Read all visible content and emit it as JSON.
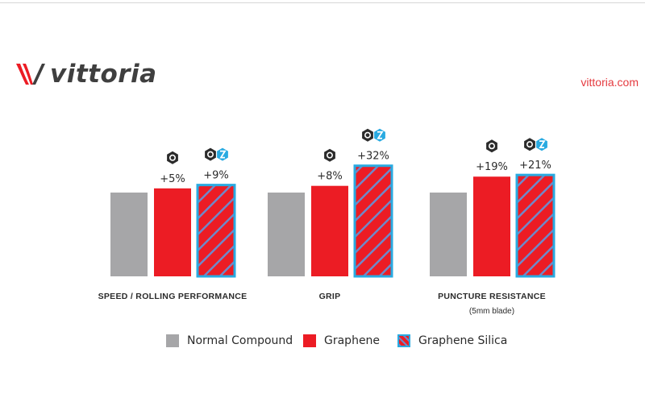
{
  "brand": {
    "name": "vittoria",
    "website": "vittoria.com"
  },
  "colors": {
    "normal": "#a6a6a8",
    "graphene": "#ec1c24",
    "silica_border": "#29aae1",
    "silica_stripe": "#6f89c9",
    "text": "#2b2b2b",
    "accent": "#e53a3f"
  },
  "chart_data": {
    "type": "bar",
    "title": "",
    "xlabel": "",
    "ylabel": "",
    "categories": [
      "SPEED / ROLLING PERFORMANCE",
      "GRIP",
      "PUNCTURE RESISTANCE"
    ],
    "category_notes": [
      "",
      "",
      "(5mm blade)"
    ],
    "series": [
      {
        "name": "Normal Compound",
        "values": [
          100,
          100,
          100
        ],
        "labels": [
          "",
          "",
          ""
        ],
        "icon": "none"
      },
      {
        "name": "Graphene",
        "values": [
          105,
          108,
          119
        ],
        "labels": [
          "+5%",
          "+8%",
          "+19%"
        ],
        "icon": "graphene-icon"
      },
      {
        "name": "Graphene Silica",
        "values": [
          109,
          132,
          121
        ],
        "labels": [
          "+9%",
          "+32%",
          "+21%"
        ],
        "icon": "graphene-silica-icon"
      }
    ],
    "ylim": [
      0,
      135
    ],
    "grid": false,
    "legend_position": "bottom"
  }
}
